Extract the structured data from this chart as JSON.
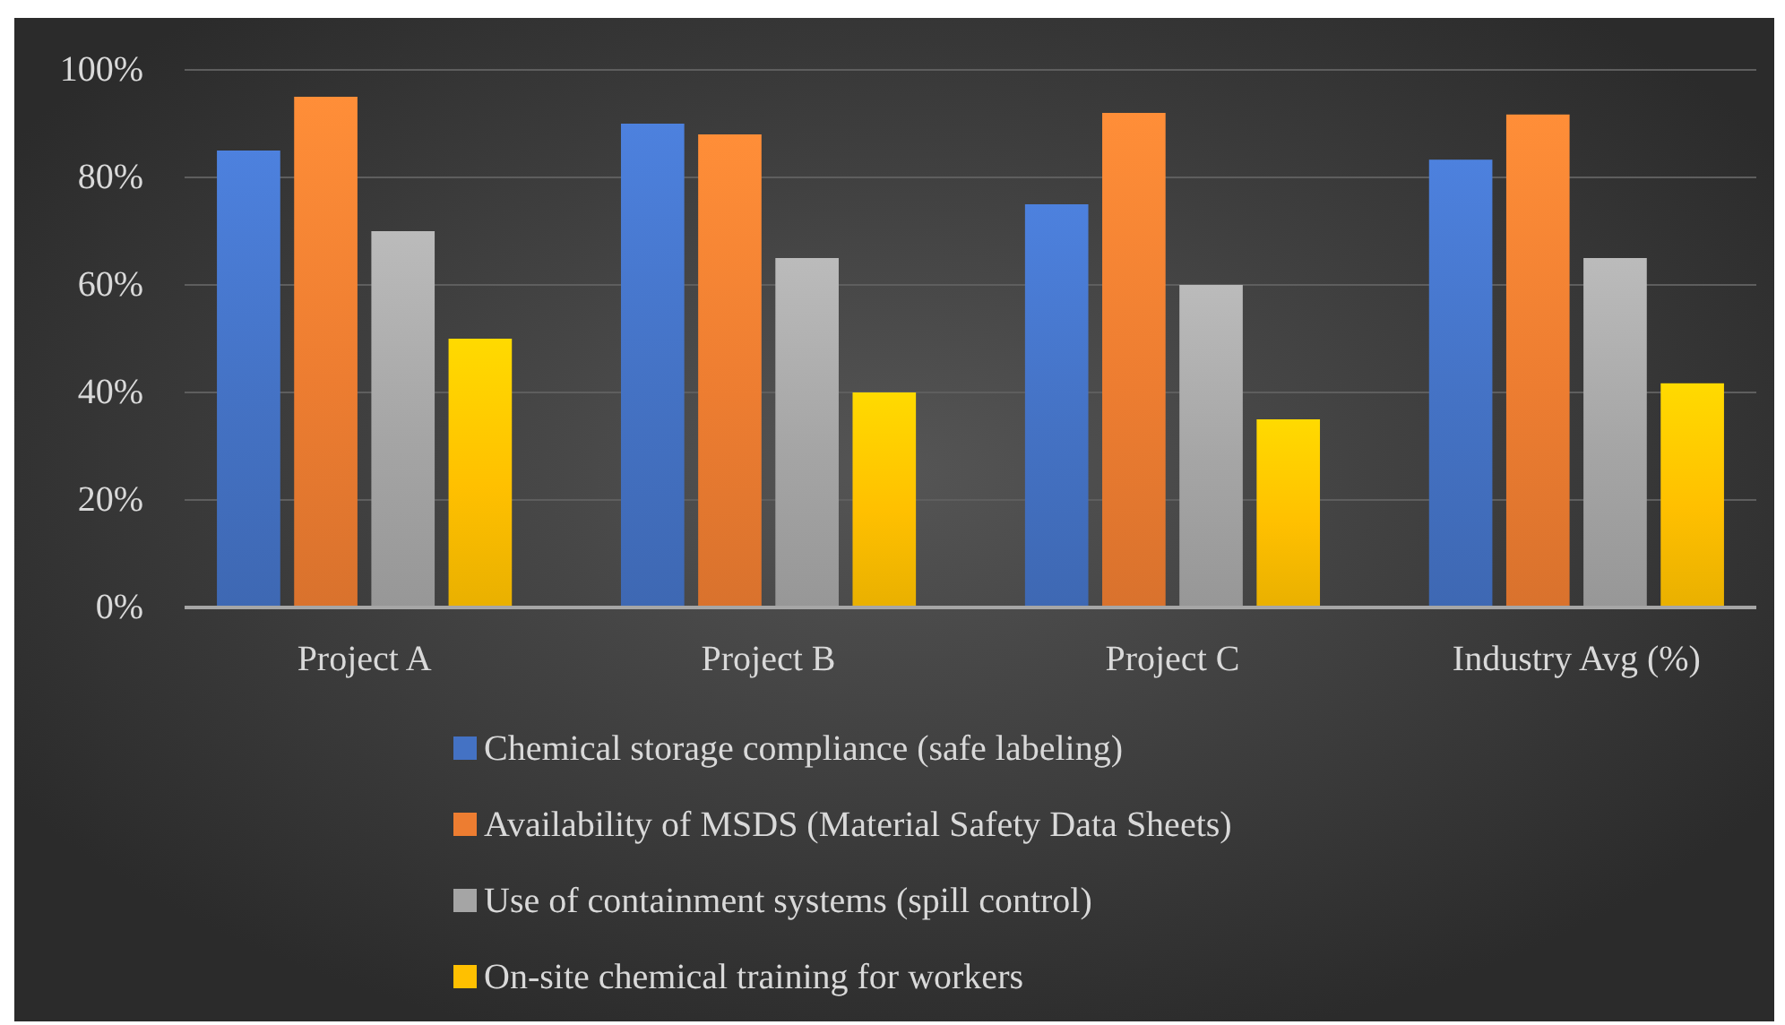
{
  "chart_data": {
    "type": "bar",
    "categories": [
      "Project A",
      "Project B",
      "Project C",
      "Industry Avg (%)"
    ],
    "series": [
      {
        "name": "Chemical storage compliance (safe labeling)",
        "color": "#4472c4",
        "values": [
          85,
          90,
          75,
          83.3
        ]
      },
      {
        "name": "Availability of MSDS (Material Safety Data Sheets)",
        "color": "#ed7d31",
        "values": [
          95,
          88,
          92,
          91.7
        ]
      },
      {
        "name": "Use of containment systems (spill control)",
        "color": "#a5a5a5",
        "values": [
          70,
          65,
          60,
          65
        ]
      },
      {
        "name": "On-site chemical training for workers",
        "color": "#ffc000",
        "values": [
          50,
          40,
          35,
          41.7
        ]
      }
    ],
    "ylim": [
      0,
      100
    ],
    "yticks": [
      {
        "value": 0,
        "label": "0%"
      },
      {
        "value": 20,
        "label": "20%"
      },
      {
        "value": 40,
        "label": "40%"
      },
      {
        "value": 60,
        "label": "60%"
      },
      {
        "value": 80,
        "label": "80%"
      },
      {
        "value": 100,
        "label": "100%"
      }
    ],
    "grid": "y",
    "legend": "bottom"
  }
}
